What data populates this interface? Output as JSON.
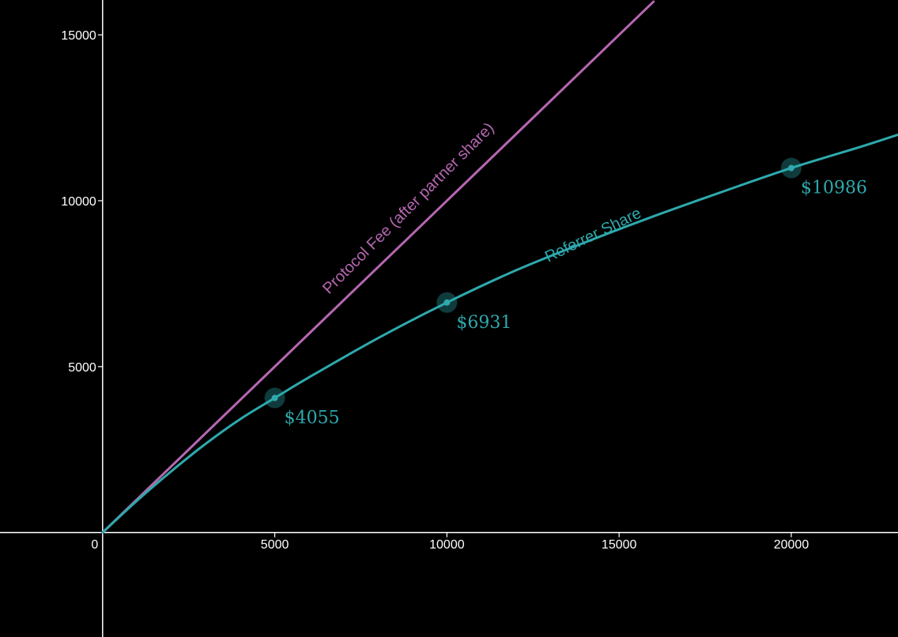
{
  "colors": {
    "background": "#000000",
    "axis": "#ffffff",
    "protocol": "#b667b2",
    "referrer": "#2ea9ad"
  },
  "chart_data": {
    "type": "line",
    "title": "",
    "xlabel": "",
    "ylabel": "",
    "xlim": [
      -2980,
      23100
    ],
    "ylim": [
      -3150,
      16050
    ],
    "grid": false,
    "x_ticks": [
      0,
      5000,
      10000,
      15000,
      20000
    ],
    "x_tick_labels": [
      "0",
      "5000",
      "10000",
      "15000",
      "20000"
    ],
    "y_ticks": [
      5000,
      10000,
      15000
    ],
    "y_tick_labels": [
      "5000",
      "10000",
      "15000"
    ],
    "series": [
      {
        "name": "Protocol Fee (after partner share)",
        "x": [
          0,
          1000,
          2000,
          4000,
          6000,
          8000,
          10000,
          12000,
          14000,
          16000
        ],
        "y": [
          0,
          1000,
          2000,
          4000,
          6000,
          8000,
          10000,
          12000,
          14000,
          16000
        ]
      },
      {
        "name": "Referrer Share",
        "x": [
          0,
          1000,
          2000,
          3000,
          4000,
          5000,
          6000,
          8000,
          10000,
          12000,
          14000,
          16000,
          18000,
          20000,
          22000,
          23100
        ],
        "y": [
          0,
          960,
          1850,
          2680,
          3420,
          4055,
          4680,
          5860,
          6931,
          7900,
          8740,
          9530,
          10270,
          10986,
          11620,
          11990
        ]
      }
    ],
    "highlighted_points": [
      {
        "x": 5000,
        "y": 4055,
        "label": "$4055"
      },
      {
        "x": 10000,
        "y": 6931,
        "label": "$6931"
      },
      {
        "x": 20000,
        "y": 10986,
        "label": "$10986"
      }
    ],
    "curve_labels": [
      {
        "series": "Protocol Fee (after partner share)",
        "text": "Protocol Fee (after partner share)"
      },
      {
        "series": "Referrer Share",
        "text": "Referrer Share"
      }
    ]
  }
}
